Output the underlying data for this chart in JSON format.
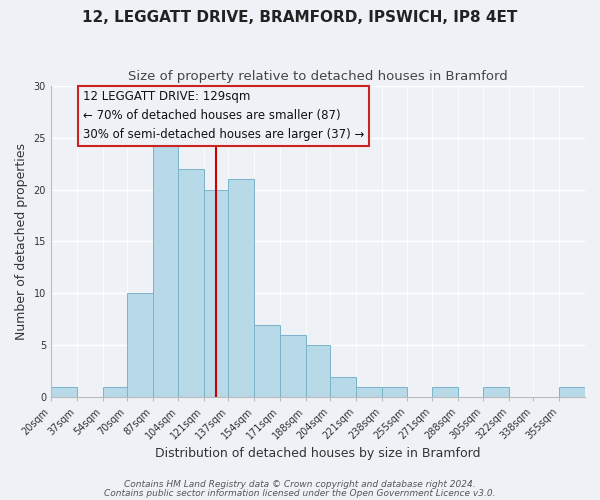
{
  "title": "12, LEGGATT DRIVE, BRAMFORD, IPSWICH, IP8 4ET",
  "subtitle": "Size of property relative to detached houses in Bramford",
  "xlabel": "Distribution of detached houses by size in Bramford",
  "ylabel": "Number of detached properties",
  "bin_labels": [
    "20sqm",
    "37sqm",
    "54sqm",
    "70sqm",
    "87sqm",
    "104sqm",
    "121sqm",
    "137sqm",
    "154sqm",
    "171sqm",
    "188sqm",
    "204sqm",
    "221sqm",
    "238sqm",
    "255sqm",
    "271sqm",
    "288sqm",
    "305sqm",
    "322sqm",
    "338sqm",
    "355sqm"
  ],
  "bin_edges": [
    20,
    37,
    54,
    70,
    87,
    104,
    121,
    137,
    154,
    171,
    188,
    204,
    221,
    238,
    255,
    271,
    288,
    305,
    322,
    338,
    355,
    372
  ],
  "counts": [
    1,
    0,
    1,
    10,
    25,
    22,
    20,
    21,
    7,
    6,
    5,
    2,
    1,
    1,
    0,
    1,
    0,
    1,
    0,
    0,
    1
  ],
  "bar_color": "#b8d9e8",
  "bar_edge_color": "#7ab3cc",
  "vline_x": 129,
  "vline_color": "#cc0000",
  "annotation_line1": "12 LEGGATT DRIVE: 129sqm",
  "annotation_line2": "← 70% of detached houses are smaller (87)",
  "annotation_line3": "30% of semi-detached houses are larger (37) →",
  "ylim": [
    0,
    30
  ],
  "yticks": [
    0,
    5,
    10,
    15,
    20,
    25,
    30
  ],
  "footer_line1": "Contains HM Land Registry data © Crown copyright and database right 2024.",
  "footer_line2": "Contains public sector information licensed under the Open Government Licence v3.0.",
  "background_color": "#eef2f7",
  "grid_color": "#ffffff",
  "title_fontsize": 11,
  "subtitle_fontsize": 9.5,
  "axis_label_fontsize": 9,
  "tick_fontsize": 7,
  "annotation_fontsize": 8.5,
  "footer_fontsize": 6.5
}
